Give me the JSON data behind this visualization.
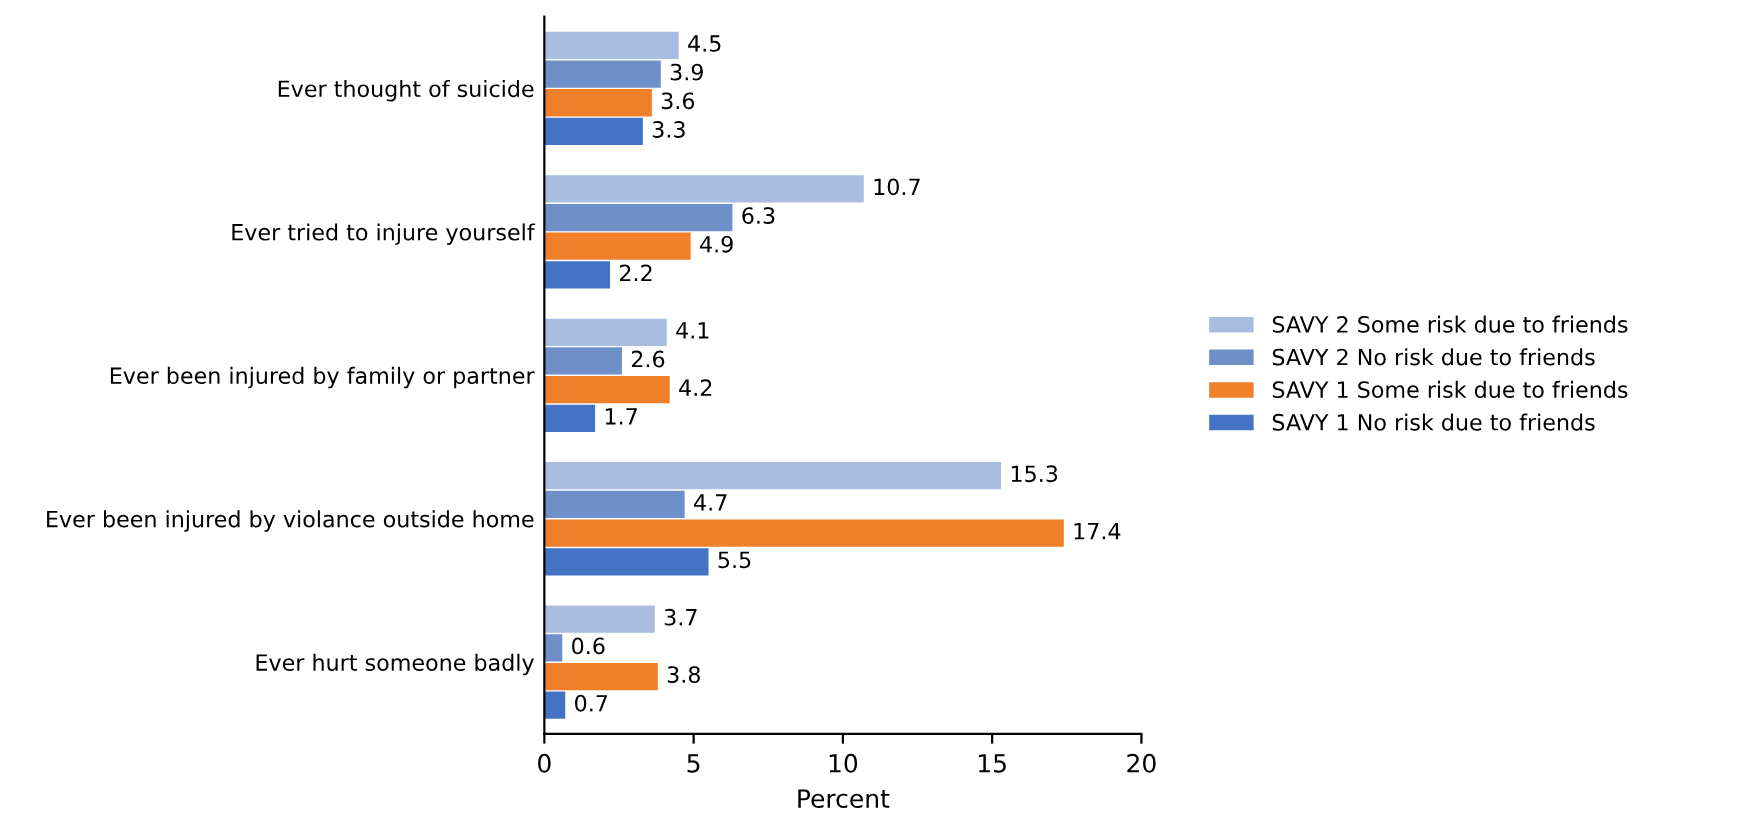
{
  "chart_data": {
    "type": "bar",
    "orientation": "horizontal",
    "xlabel": "Percent",
    "categories": [
      "Ever thought of suicide",
      "Ever tried to injure yourself",
      "Ever been injured by family or partner",
      "Ever been injured by violance outside home",
      "Ever hurt someone badly"
    ],
    "series": [
      {
        "name": "SAVY 2 Some risk due to friends",
        "color": "#a9bde0",
        "values": [
          4.5,
          10.7,
          4.1,
          15.3,
          3.7
        ]
      },
      {
        "name": "SAVY 2 No risk due to friends",
        "color": "#6f8fc9",
        "values": [
          3.9,
          6.3,
          2.6,
          4.7,
          0.6
        ]
      },
      {
        "name": "SAVY 1 Some risk due to friends",
        "color": "#f07f2a",
        "values": [
          3.6,
          4.9,
          4.2,
          17.4,
          3.8
        ]
      },
      {
        "name": "SAVY 1 No risk due to friends",
        "color": "#4472c4",
        "values": [
          3.3,
          2.2,
          1.7,
          5.5,
          0.7
        ]
      }
    ],
    "xlim": [
      0,
      20
    ],
    "xticks": [
      0,
      5,
      10,
      15,
      20
    ],
    "data_labels": true,
    "grid": false,
    "legend": "right"
  }
}
